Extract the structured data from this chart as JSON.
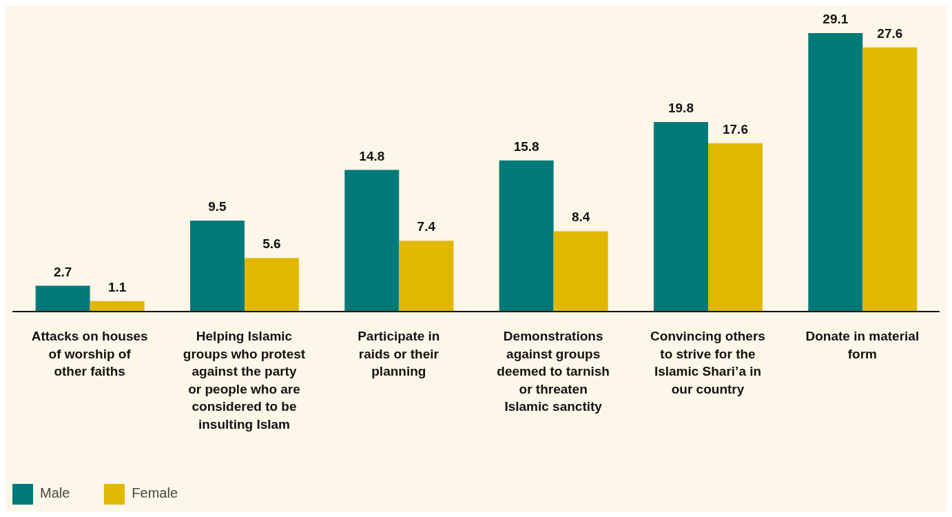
{
  "chart_data": {
    "type": "bar",
    "categories": [
      "Attacks on houses of worship of other faiths",
      "Helping Islamic groups who protest against the party or people who are considered to be insulting Islam",
      "Participate in raids or their planning",
      "Demonstrations against groups deemed to tarnish or threaten Islamic sanctity",
      "Convincing others to strive for the Islamic Shari’a in our country",
      "Donate in material form"
    ],
    "series": [
      {
        "name": "Male",
        "color": "#007a78",
        "values": [
          2.7,
          9.5,
          14.8,
          15.8,
          19.8,
          29.1
        ]
      },
      {
        "name": "Female",
        "color": "#e0b800",
        "values": [
          1.1,
          5.6,
          7.4,
          8.4,
          17.6,
          27.6
        ]
      }
    ],
    "data_labels": true,
    "legend": "bottom left",
    "grid": false
  }
}
